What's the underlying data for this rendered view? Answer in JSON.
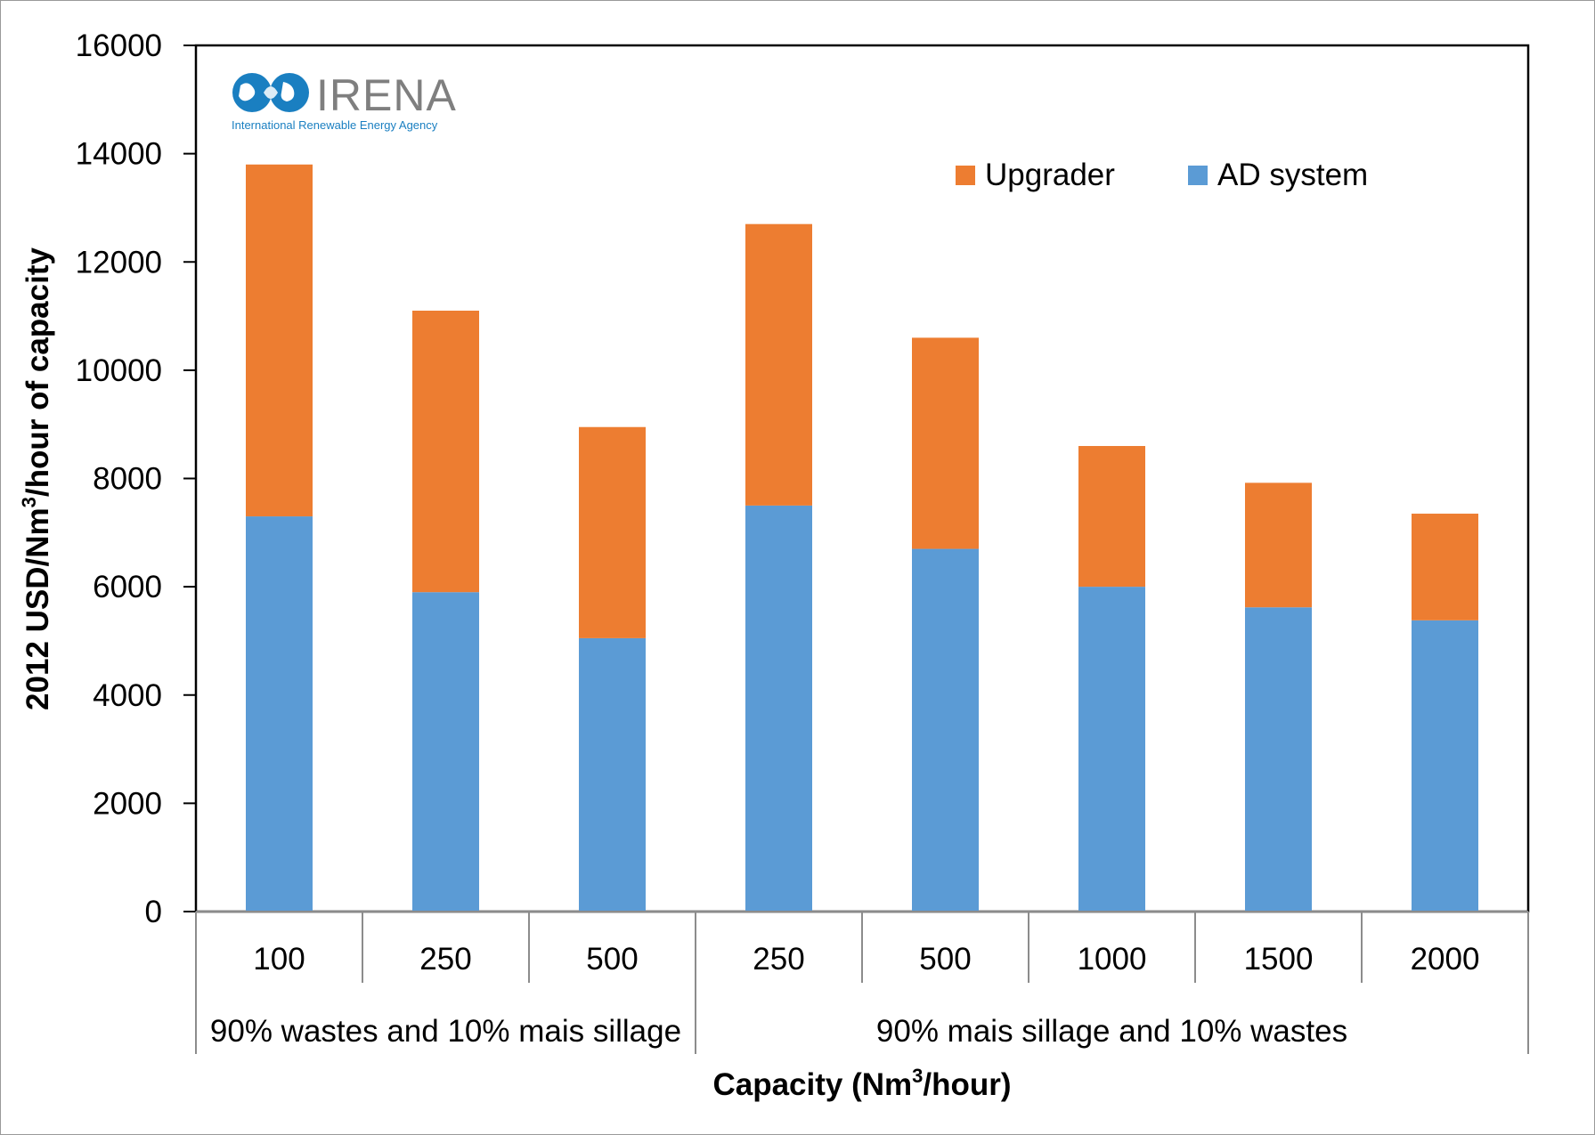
{
  "chart_data": {
    "type": "bar",
    "stacked": true,
    "categories": [
      "100",
      "250",
      "500",
      "250",
      "500",
      "1000",
      "1500",
      "2000"
    ],
    "category_groups": [
      {
        "label": "90% wastes and 10% mais sillage",
        "count": 3
      },
      {
        "label": "90% mais sillage and 10% wastes",
        "count": 5
      }
    ],
    "series": [
      {
        "name": "AD system",
        "color": "#5b9bd5",
        "values": [
          7300,
          5900,
          5050,
          7500,
          6700,
          6000,
          5620,
          5380
        ]
      },
      {
        "name": "Upgrader",
        "color": "#ed7d31",
        "values": [
          6500,
          5200,
          3900,
          5200,
          3900,
          2600,
          2300,
          1970
        ]
      }
    ],
    "legend_order": [
      "Upgrader",
      "AD system"
    ],
    "legend_position": "top-right",
    "ylim": [
      0,
      16000
    ],
    "yticks": [
      "0",
      "2000",
      "4000",
      "6000",
      "8000",
      "10000",
      "12000",
      "14000",
      "16000"
    ],
    "xlabel": "Capacity (Nm",
    "xlabel_sup": "3",
    "xlabel_end": "/hour)",
    "ylabel": "2012 USD/Nm",
    "ylabel_sup": "3",
    "ylabel_end": "/hour of capacity",
    "grid": false
  },
  "logo": {
    "name": "IRENA",
    "subtitle": "International Renewable Energy Agency",
    "icon": "irena-globe-icon",
    "color": "#1a7fc1"
  }
}
